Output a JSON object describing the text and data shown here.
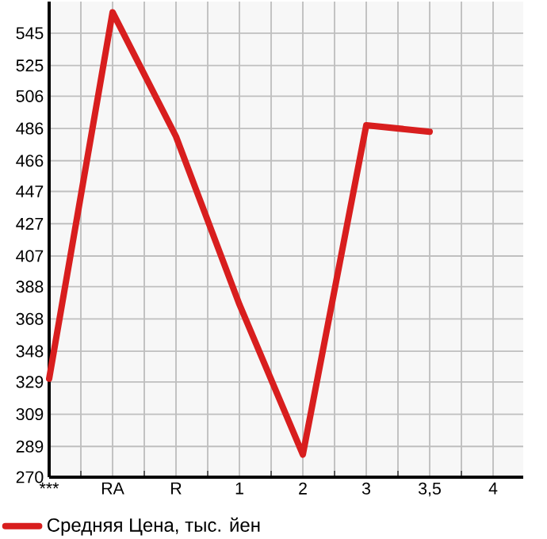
{
  "chart_data": {
    "type": "line",
    "categories": [
      "***",
      "RA",
      "R",
      "1",
      "2",
      "3",
      "3,5",
      "4"
    ],
    "series": [
      {
        "name": "Средняя Цена, тыс. йен",
        "color": "#d81e1e",
        "values": [
          331,
          558,
          481,
          377,
          284,
          488,
          484,
          null
        ]
      }
    ],
    "ylim": [
      270,
      564.6
    ],
    "yticks": [
      270,
      289,
      309,
      329,
      348,
      368,
      388,
      407,
      427,
      447,
      466,
      486,
      506,
      525,
      545
    ],
    "grid": true,
    "legend": "bottom",
    "marker": "none",
    "line_style": "solid"
  }
}
